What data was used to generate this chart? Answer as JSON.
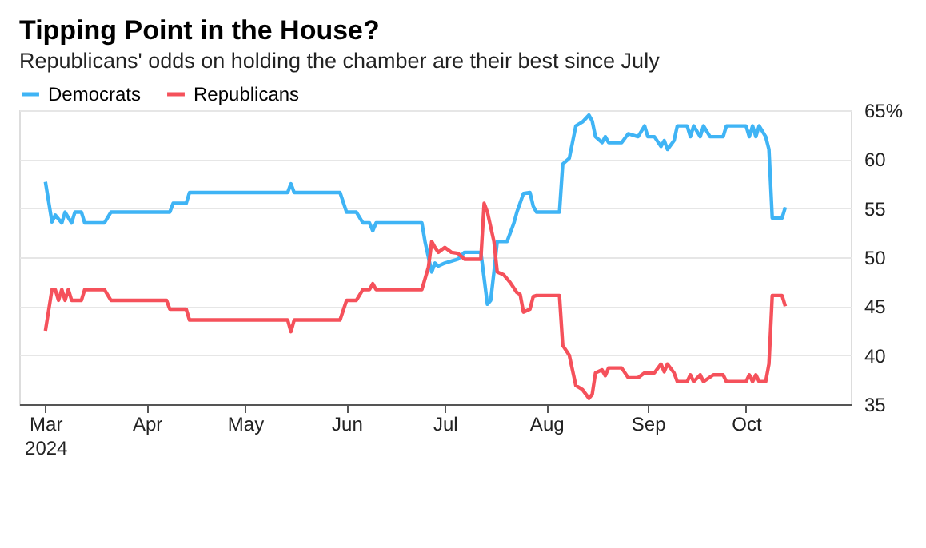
{
  "chart_data": {
    "type": "line",
    "title": "Tipping Point in the House?",
    "subtitle": "Republicans' odds on holding the chamber are their best since July",
    "legend": "top left",
    "grid": "y",
    "marker": "none",
    "line_style": "solid",
    "xlim": [
      "2024-02-22",
      "2024-11-02"
    ],
    "xticks": [
      {
        "value": "2024-03-01",
        "label": "Mar\n2024"
      },
      {
        "value": "2024-04-01",
        "label": "Apr"
      },
      {
        "value": "2024-05-01",
        "label": "May"
      },
      {
        "value": "2024-06-01",
        "label": "Jun"
      },
      {
        "value": "2024-07-01",
        "label": "Jul"
      },
      {
        "value": "2024-08-01",
        "label": "Aug"
      },
      {
        "value": "2024-09-01",
        "label": "Sep"
      },
      {
        "value": "2024-10-01",
        "label": "Oct"
      }
    ],
    "ylim": [
      35,
      65
    ],
    "yticks": [
      35,
      40,
      45,
      50,
      55,
      60,
      {
        "value": 65,
        "label": "65%"
      }
    ],
    "series": [
      {
        "name": "Democrats",
        "color": "#3fb4f5",
        "x": [
          "2024-03-01",
          "2024-03-03",
          "2024-03-04",
          "2024-03-06",
          "2024-03-07",
          "2024-03-09",
          "2024-03-10",
          "2024-03-12",
          "2024-03-13",
          "2024-03-19",
          "2024-03-21",
          "2024-04-08",
          "2024-04-09",
          "2024-04-13",
          "2024-04-14",
          "2024-05-14",
          "2024-05-15",
          "2024-05-16",
          "2024-05-30",
          "2024-06-01",
          "2024-06-04",
          "2024-06-06",
          "2024-06-08",
          "2024-06-09",
          "2024-06-10",
          "2024-06-24",
          "2024-06-25",
          "2024-06-27",
          "2024-06-28",
          "2024-06-29",
          "2024-07-01",
          "2024-07-05",
          "2024-07-07",
          "2024-07-12",
          "2024-07-14",
          "2024-07-15",
          "2024-07-16",
          "2024-07-17",
          "2024-07-20",
          "2024-07-21",
          "2024-07-22",
          "2024-07-23",
          "2024-07-25",
          "2024-07-27",
          "2024-07-28",
          "2024-07-29",
          "2024-08-05",
          "2024-08-06",
          "2024-08-08",
          "2024-08-10",
          "2024-08-12",
          "2024-08-14",
          "2024-08-15",
          "2024-08-16",
          "2024-08-18",
          "2024-08-19",
          "2024-08-20",
          "2024-08-24",
          "2024-08-26",
          "2024-08-29",
          "2024-08-31",
          "2024-09-01",
          "2024-09-03",
          "2024-09-05",
          "2024-09-06",
          "2024-09-07",
          "2024-09-09",
          "2024-09-10",
          "2024-09-13",
          "2024-09-14",
          "2024-09-15",
          "2024-09-17",
          "2024-09-18",
          "2024-09-20",
          "2024-09-24",
          "2024-09-25",
          "2024-10-01",
          "2024-10-02",
          "2024-10-03",
          "2024-10-04",
          "2024-10-05",
          "2024-10-07",
          "2024-10-08",
          "2024-10-09",
          "2024-10-12",
          "2024-10-13"
        ],
        "values": [
          57.7,
          53.6,
          54.3,
          53.5,
          54.6,
          53.5,
          54.6,
          54.6,
          53.5,
          53.5,
          54.6,
          54.6,
          55.5,
          55.5,
          56.6,
          56.6,
          57.5,
          56.6,
          56.6,
          54.6,
          54.6,
          53.5,
          53.5,
          52.7,
          53.5,
          53.5,
          51.5,
          48.5,
          49.4,
          49.1,
          49.4,
          49.8,
          50.5,
          50.5,
          45.2,
          45.6,
          48.5,
          51.6,
          51.6,
          52.5,
          53.4,
          54.6,
          56.5,
          56.6,
          55.2,
          54.6,
          54.6,
          59.5,
          60.1,
          63.4,
          63.8,
          64.5,
          63.9,
          62.3,
          61.7,
          62.3,
          61.7,
          61.7,
          62.6,
          62.3,
          63.4,
          62.3,
          62.3,
          61.3,
          61.9,
          61.0,
          61.9,
          63.4,
          63.4,
          62.3,
          63.4,
          62.3,
          63.4,
          62.3,
          62.3,
          63.4,
          63.4,
          62.3,
          63.4,
          62.3,
          63.4,
          62.3,
          61.0,
          54.0,
          54.0,
          55.1
        ]
      },
      {
        "name": "Republicans",
        "color": "#f5515b",
        "x": [
          "2024-03-01",
          "2024-03-03",
          "2024-03-04",
          "2024-03-05",
          "2024-03-06",
          "2024-03-07",
          "2024-03-08",
          "2024-03-09",
          "2024-03-10",
          "2024-03-12",
          "2024-03-13",
          "2024-03-19",
          "2024-03-21",
          "2024-04-07",
          "2024-04-08",
          "2024-04-13",
          "2024-04-14",
          "2024-05-14",
          "2024-05-15",
          "2024-05-16",
          "2024-05-30",
          "2024-06-01",
          "2024-06-04",
          "2024-06-06",
          "2024-06-08",
          "2024-06-09",
          "2024-06-10",
          "2024-06-24",
          "2024-06-26",
          "2024-06-27",
          "2024-06-28",
          "2024-06-29",
          "2024-07-01",
          "2024-07-03",
          "2024-07-05",
          "2024-07-07",
          "2024-07-12",
          "2024-07-13",
          "2024-07-14",
          "2024-07-16",
          "2024-07-17",
          "2024-07-19",
          "2024-07-21",
          "2024-07-23",
          "2024-07-24",
          "2024-07-25",
          "2024-07-27",
          "2024-07-28",
          "2024-07-29",
          "2024-08-05",
          "2024-08-06",
          "2024-08-08",
          "2024-08-10",
          "2024-08-12",
          "2024-08-14",
          "2024-08-15",
          "2024-08-16",
          "2024-08-18",
          "2024-08-19",
          "2024-08-20",
          "2024-08-24",
          "2024-08-26",
          "2024-08-29",
          "2024-08-31",
          "2024-09-03",
          "2024-09-05",
          "2024-09-06",
          "2024-09-07",
          "2024-09-09",
          "2024-09-10",
          "2024-09-13",
          "2024-09-14",
          "2024-09-15",
          "2024-09-17",
          "2024-09-18",
          "2024-09-21",
          "2024-09-24",
          "2024-09-25",
          "2024-10-01",
          "2024-10-02",
          "2024-10-03",
          "2024-10-04",
          "2024-10-05",
          "2024-10-07",
          "2024-10-08",
          "2024-10-09",
          "2024-10-12",
          "2024-10-13"
        ],
        "values": [
          42.5,
          46.7,
          46.7,
          45.6,
          46.7,
          45.6,
          46.7,
          45.6,
          45.6,
          45.6,
          46.7,
          46.7,
          45.6,
          45.6,
          44.7,
          44.7,
          43.6,
          43.6,
          42.4,
          43.6,
          43.6,
          45.6,
          45.6,
          46.7,
          46.7,
          47.3,
          46.7,
          46.7,
          49.0,
          51.6,
          51.0,
          50.5,
          51.0,
          50.5,
          50.4,
          49.8,
          49.8,
          55.5,
          54.6,
          51.6,
          48.5,
          48.2,
          47.4,
          46.4,
          46.2,
          44.4,
          44.7,
          46.0,
          46.1,
          46.1,
          41.0,
          40.0,
          36.9,
          36.5,
          35.6,
          36.0,
          38.2,
          38.5,
          37.9,
          38.7,
          38.7,
          37.7,
          37.7,
          38.2,
          38.2,
          39.1,
          38.3,
          39.1,
          38.2,
          37.3,
          37.3,
          38.0,
          37.3,
          38.0,
          37.3,
          38.0,
          38.0,
          37.3,
          37.3,
          38.0,
          37.3,
          38.0,
          37.3,
          37.3,
          39.1,
          46.1,
          46.1,
          45.0
        ]
      }
    ]
  }
}
